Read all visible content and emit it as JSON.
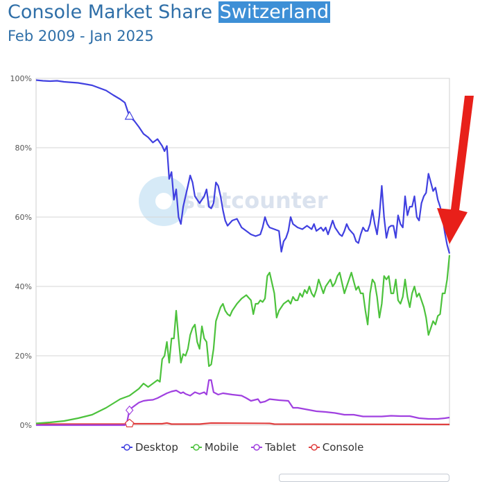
{
  "header": {
    "title_prefix": "Console Market Share",
    "title_highlight": "Switzerland",
    "subtitle": "Feb 2009 - Jan 2025"
  },
  "watermark": {
    "text": "statcounter"
  },
  "colors": {
    "desktop": "#4040e0",
    "mobile": "#4cc23c",
    "tablet": "#a040e0",
    "console": "#e04040",
    "arrow": "#e8201a",
    "grid": "#d6d6d6"
  },
  "chart_data": {
    "type": "line",
    "title": "Console Market Share Switzerland",
    "subtitle": "Feb 2009 - Jan 2025",
    "ylim": [
      0,
      100
    ],
    "yticks": [
      "0%",
      "20%",
      "40%",
      "60%",
      "80%",
      "100%"
    ],
    "x_start": "2009-02",
    "x_end": "2025-01",
    "series": [
      {
        "name": "Desktop",
        "color": "#4040e0",
        "points": [
          [
            0,
            99.5
          ],
          [
            3,
            99.3
          ],
          [
            6,
            99.2
          ],
          [
            9,
            99.3
          ],
          [
            12,
            99
          ],
          [
            18,
            98.7
          ],
          [
            24,
            98
          ],
          [
            30,
            96.5
          ],
          [
            33,
            95.2
          ],
          [
            36,
            94
          ],
          [
            38,
            93
          ],
          [
            40,
            89
          ],
          [
            42,
            87.8
          ],
          [
            44,
            86
          ],
          [
            46,
            84
          ],
          [
            48,
            83
          ],
          [
            50,
            81.5
          ],
          [
            52,
            82.5
          ],
          [
            54,
            80.5
          ],
          [
            55,
            79
          ],
          [
            56,
            80.5
          ],
          [
            57,
            71
          ],
          [
            58,
            73
          ],
          [
            59,
            65
          ],
          [
            60,
            68
          ],
          [
            61,
            60
          ],
          [
            62,
            58
          ],
          [
            63,
            63
          ],
          [
            64,
            66
          ],
          [
            65,
            69
          ],
          [
            66,
            72
          ],
          [
            67,
            70
          ],
          [
            68,
            66
          ],
          [
            70,
            64
          ],
          [
            72,
            66
          ],
          [
            73,
            68
          ],
          [
            74,
            63
          ],
          [
            75,
            62.5
          ],
          [
            76,
            64
          ],
          [
            77,
            70
          ],
          [
            78,
            69
          ],
          [
            79,
            66
          ],
          [
            80,
            62
          ],
          [
            81,
            59
          ],
          [
            82,
            57.5
          ],
          [
            84,
            59
          ],
          [
            86,
            59.5
          ],
          [
            88,
            57
          ],
          [
            90,
            56
          ],
          [
            92,
            55
          ],
          [
            94,
            54.5
          ],
          [
            96,
            55
          ],
          [
            97,
            57
          ],
          [
            98,
            60
          ],
          [
            99,
            58
          ],
          [
            100,
            57
          ],
          [
            102,
            56.5
          ],
          [
            104,
            56
          ],
          [
            105,
            50
          ],
          [
            106,
            53
          ],
          [
            107,
            54
          ],
          [
            108,
            56
          ],
          [
            109,
            60
          ],
          [
            110,
            58
          ],
          [
            112,
            57
          ],
          [
            114,
            56.5
          ],
          [
            116,
            57.5
          ],
          [
            118,
            56.5
          ],
          [
            119,
            58
          ],
          [
            120,
            56
          ],
          [
            122,
            57
          ],
          [
            123,
            56
          ],
          [
            124,
            57
          ],
          [
            125,
            55
          ],
          [
            126,
            57
          ],
          [
            127,
            59
          ],
          [
            128,
            57
          ],
          [
            130,
            55
          ],
          [
            131,
            54.5
          ],
          [
            132,
            56
          ],
          [
            133,
            58
          ],
          [
            134,
            56.5
          ],
          [
            136,
            55
          ],
          [
            137,
            53
          ],
          [
            138,
            52.5
          ],
          [
            139,
            55
          ],
          [
            140,
            57
          ],
          [
            141,
            56
          ],
          [
            142,
            56
          ],
          [
            143,
            58
          ],
          [
            144,
            62
          ],
          [
            145,
            58
          ],
          [
            146,
            55
          ],
          [
            147,
            60.5
          ],
          [
            148,
            69
          ],
          [
            149,
            60
          ],
          [
            150,
            54
          ],
          [
            151,
            57
          ],
          [
            152,
            57.5
          ],
          [
            153,
            57.5
          ],
          [
            154,
            54
          ],
          [
            155,
            60.5
          ],
          [
            156,
            58
          ],
          [
            157,
            57
          ],
          [
            158,
            66
          ],
          [
            159,
            60.5
          ],
          [
            160,
            63
          ],
          [
            161,
            63
          ],
          [
            162,
            66
          ],
          [
            163,
            60
          ],
          [
            164,
            59
          ],
          [
            165,
            64
          ],
          [
            166,
            66
          ],
          [
            167,
            67
          ],
          [
            168,
            72.5
          ],
          [
            169,
            70
          ],
          [
            170,
            67.5
          ],
          [
            171,
            68.5
          ],
          [
            172,
            65
          ],
          [
            173,
            63
          ],
          [
            174,
            60
          ],
          [
            175,
            55.5
          ],
          [
            176,
            52
          ],
          [
            177,
            49.5
          ]
        ]
      },
      {
        "name": "Mobile",
        "color": "#4cc23c",
        "points": [
          [
            0,
            0.5
          ],
          [
            6,
            0.8
          ],
          [
            12,
            1.2
          ],
          [
            18,
            2
          ],
          [
            24,
            3
          ],
          [
            30,
            5
          ],
          [
            36,
            7.5
          ],
          [
            40,
            8.5
          ],
          [
            44,
            10.5
          ],
          [
            46,
            12
          ],
          [
            48,
            11
          ],
          [
            50,
            12
          ],
          [
            52,
            13
          ],
          [
            53,
            12.5
          ],
          [
            54,
            19
          ],
          [
            55,
            20
          ],
          [
            56,
            24
          ],
          [
            57,
            18
          ],
          [
            58,
            25
          ],
          [
            59,
            25
          ],
          [
            60,
            33
          ],
          [
            61,
            25
          ],
          [
            62,
            18
          ],
          [
            63,
            20.5
          ],
          [
            64,
            20
          ],
          [
            65,
            22
          ],
          [
            66,
            26
          ],
          [
            67,
            28
          ],
          [
            68,
            29
          ],
          [
            69,
            24
          ],
          [
            70,
            22
          ],
          [
            71,
            28.5
          ],
          [
            72,
            25
          ],
          [
            73,
            24
          ],
          [
            74,
            17
          ],
          [
            75,
            17.5
          ],
          [
            76,
            22
          ],
          [
            77,
            30
          ],
          [
            78,
            32
          ],
          [
            79,
            34
          ],
          [
            80,
            35
          ],
          [
            81,
            33
          ],
          [
            82,
            32
          ],
          [
            83,
            31.5
          ],
          [
            84,
            33
          ],
          [
            86,
            35
          ],
          [
            88,
            36.5
          ],
          [
            90,
            37.5
          ],
          [
            92,
            36
          ],
          [
            93,
            32
          ],
          [
            94,
            35
          ],
          [
            95,
            35
          ],
          [
            96,
            36
          ],
          [
            97,
            35.5
          ],
          [
            98,
            36.5
          ],
          [
            99,
            43
          ],
          [
            100,
            44
          ],
          [
            101,
            41
          ],
          [
            102,
            38
          ],
          [
            103,
            31
          ],
          [
            104,
            33
          ],
          [
            106,
            35
          ],
          [
            108,
            36
          ],
          [
            109,
            35
          ],
          [
            110,
            37
          ],
          [
            111,
            36
          ],
          [
            112,
            36
          ],
          [
            113,
            38
          ],
          [
            114,
            37
          ],
          [
            115,
            39
          ],
          [
            116,
            38
          ],
          [
            117,
            40
          ],
          [
            118,
            38
          ],
          [
            119,
            37
          ],
          [
            120,
            39
          ],
          [
            121,
            42
          ],
          [
            122,
            40
          ],
          [
            123,
            38
          ],
          [
            124,
            40
          ],
          [
            125,
            41
          ],
          [
            126,
            42
          ],
          [
            127,
            40
          ],
          [
            128,
            41
          ],
          [
            129,
            43
          ],
          [
            130,
            44
          ],
          [
            131,
            41
          ],
          [
            132,
            38
          ],
          [
            133,
            40
          ],
          [
            134,
            42
          ],
          [
            135,
            44
          ],
          [
            136,
            41.5
          ],
          [
            137,
            39
          ],
          [
            138,
            40
          ],
          [
            139,
            38
          ],
          [
            140,
            38
          ],
          [
            141,
            33
          ],
          [
            142,
            29
          ],
          [
            143,
            38
          ],
          [
            144,
            42
          ],
          [
            145,
            41
          ],
          [
            146,
            37
          ],
          [
            147,
            31
          ],
          [
            148,
            35
          ],
          [
            149,
            43
          ],
          [
            150,
            42
          ],
          [
            151,
            43
          ],
          [
            152,
            38
          ],
          [
            153,
            38
          ],
          [
            154,
            42
          ],
          [
            155,
            36
          ],
          [
            156,
            35
          ],
          [
            157,
            37
          ],
          [
            158,
            42
          ],
          [
            159,
            37
          ],
          [
            160,
            34
          ],
          [
            161,
            38
          ],
          [
            162,
            40
          ],
          [
            163,
            37
          ],
          [
            164,
            38
          ],
          [
            165,
            36
          ],
          [
            166,
            34
          ],
          [
            167,
            31
          ],
          [
            168,
            26
          ],
          [
            169,
            28
          ],
          [
            170,
            30
          ],
          [
            171,
            29
          ],
          [
            172,
            31.5
          ],
          [
            173,
            32
          ],
          [
            174,
            38
          ],
          [
            175,
            38
          ],
          [
            176,
            42
          ],
          [
            177,
            49
          ]
        ]
      },
      {
        "name": "Tablet",
        "color": "#a040e0",
        "points": [
          [
            0,
            0
          ],
          [
            38,
            0
          ],
          [
            39,
            1
          ],
          [
            40,
            4.5
          ],
          [
            41,
            5
          ],
          [
            42,
            5.5
          ],
          [
            44,
            6.5
          ],
          [
            46,
            7
          ],
          [
            48,
            7.2
          ],
          [
            50,
            7.3
          ],
          [
            52,
            7.8
          ],
          [
            54,
            8.5
          ],
          [
            56,
            9.2
          ],
          [
            58,
            9.7
          ],
          [
            60,
            10
          ],
          [
            62,
            9.2
          ],
          [
            63,
            9.5
          ],
          [
            64,
            9
          ],
          [
            66,
            8.5
          ],
          [
            68,
            9.5
          ],
          [
            70,
            9
          ],
          [
            72,
            9.5
          ],
          [
            73,
            8.8
          ],
          [
            74,
            13
          ],
          [
            75,
            13
          ],
          [
            76,
            9.5
          ],
          [
            78,
            8.8
          ],
          [
            80,
            9.2
          ],
          [
            84,
            8.8
          ],
          [
            88,
            8.5
          ],
          [
            90,
            7.8
          ],
          [
            92,
            7
          ],
          [
            95,
            7.5
          ],
          [
            96,
            6.5
          ],
          [
            98,
            6.8
          ],
          [
            100,
            7.5
          ],
          [
            104,
            7.2
          ],
          [
            108,
            7
          ],
          [
            110,
            5
          ],
          [
            112,
            5
          ],
          [
            116,
            4.5
          ],
          [
            120,
            4
          ],
          [
            124,
            3.8
          ],
          [
            128,
            3.5
          ],
          [
            132,
            3
          ],
          [
            136,
            3
          ],
          [
            140,
            2.5
          ],
          [
            144,
            2.5
          ],
          [
            148,
            2.5
          ],
          [
            152,
            2.7
          ],
          [
            156,
            2.6
          ],
          [
            160,
            2.6
          ],
          [
            164,
            2
          ],
          [
            168,
            1.8
          ],
          [
            172,
            1.8
          ],
          [
            175,
            2
          ],
          [
            177,
            2.2
          ]
        ]
      },
      {
        "name": "Console",
        "color": "#e04040",
        "points": [
          [
            0,
            0.3
          ],
          [
            20,
            0.3
          ],
          [
            38,
            0.3
          ],
          [
            40,
            0.8
          ],
          [
            41,
            0.4
          ],
          [
            54,
            0.4
          ],
          [
            56,
            0.6
          ],
          [
            58,
            0.3
          ],
          [
            70,
            0.3
          ],
          [
            75,
            0.6
          ],
          [
            100,
            0.5
          ],
          [
            102,
            0.3
          ],
          [
            177,
            0.2
          ]
        ]
      }
    ],
    "legend_position": "bottom",
    "grid": true
  }
}
